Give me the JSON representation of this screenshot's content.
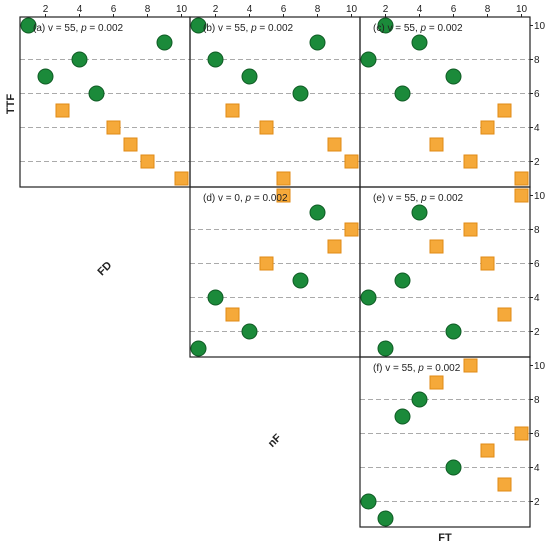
{
  "colors": {
    "circle": "#1b8a3a",
    "circle_edge": "#0f5a24",
    "square": "#f5a93a",
    "square_edge": "#e08a14",
    "grid": "#aaaaaa",
    "frame": "#222222"
  },
  "labels": {
    "row_label": "TTF",
    "diag_label_1": "FD",
    "diag_label_2": "nF",
    "col_label": "FT"
  },
  "chart_data": [
    {
      "type": "scatter",
      "panel": "a",
      "annotation": {
        "prefix": "(a) v = 55, ",
        "p_symbol": "p",
        "suffix": " = 0.002"
      },
      "xlim": [
        0.5,
        10.5
      ],
      "ylim": [
        0.5,
        10.5
      ],
      "x_ticks": [
        "2",
        "4",
        "6",
        "8",
        "10"
      ],
      "y_ticks": [],
      "circles": [
        [
          1,
          10
        ],
        [
          9,
          9
        ],
        [
          4,
          8
        ],
        [
          2,
          7
        ],
        [
          5,
          6
        ]
      ],
      "squares": [
        [
          3,
          5
        ],
        [
          6,
          4
        ],
        [
          7,
          3
        ],
        [
          8,
          2
        ],
        [
          10,
          1
        ]
      ]
    },
    {
      "type": "scatter",
      "panel": "b",
      "annotation": {
        "prefix": "(b) v = 55, ",
        "p_symbol": "p",
        "suffix": " = 0.002"
      },
      "xlim": [
        0.5,
        10.5
      ],
      "ylim": [
        0.5,
        10.5
      ],
      "x_ticks": [
        "2",
        "4",
        "6",
        "8",
        "10"
      ],
      "y_ticks": [],
      "circles": [
        [
          1,
          10
        ],
        [
          8,
          9
        ],
        [
          2,
          8
        ],
        [
          4,
          7
        ],
        [
          7,
          6
        ]
      ],
      "squares": [
        [
          3,
          5
        ],
        [
          5,
          4
        ],
        [
          9,
          3
        ],
        [
          10,
          2
        ],
        [
          6,
          1
        ]
      ]
    },
    {
      "type": "scatter",
      "panel": "c",
      "annotation": {
        "prefix": "(c) v = 55, ",
        "p_symbol": "p",
        "suffix": " = 0.002"
      },
      "xlim": [
        0.5,
        10.5
      ],
      "ylim": [
        0.5,
        10.5
      ],
      "x_ticks": [
        "2",
        "4",
        "6",
        "8",
        "10"
      ],
      "y_ticks": [
        "2",
        "4",
        "6",
        "8",
        "10"
      ],
      "circles": [
        [
          2,
          10
        ],
        [
          4,
          9
        ],
        [
          1,
          8
        ],
        [
          6,
          7
        ],
        [
          3,
          6
        ]
      ],
      "squares": [
        [
          9,
          5
        ],
        [
          8,
          4
        ],
        [
          5,
          3
        ],
        [
          7,
          2
        ],
        [
          10,
          1
        ]
      ]
    },
    {
      "type": "scatter",
      "panel": "d",
      "annotation": {
        "prefix": "(d) v = 0, ",
        "p_symbol": "p",
        "suffix": " = 0.002"
      },
      "xlim": [
        0.5,
        10.5
      ],
      "ylim": [
        0.5,
        10.5
      ],
      "x_ticks": [],
      "y_ticks": [],
      "circles": [
        [
          8,
          9
        ],
        [
          7,
          5
        ],
        [
          2,
          4
        ],
        [
          4,
          2
        ],
        [
          1,
          1
        ]
      ],
      "squares": [
        [
          6,
          10
        ],
        [
          10,
          8
        ],
        [
          9,
          7
        ],
        [
          5,
          6
        ],
        [
          3,
          3
        ]
      ]
    },
    {
      "type": "scatter",
      "panel": "e",
      "annotation": {
        "prefix": "(e) v = 55, ",
        "p_symbol": "p",
        "suffix": " = 0.002"
      },
      "xlim": [
        0.5,
        10.5
      ],
      "ylim": [
        0.5,
        10.5
      ],
      "x_ticks": [],
      "y_ticks": [
        "2",
        "4",
        "6",
        "8",
        "10"
      ],
      "circles": [
        [
          4,
          9
        ],
        [
          3,
          5
        ],
        [
          1,
          4
        ],
        [
          6,
          2
        ],
        [
          2,
          1
        ]
      ],
      "squares": [
        [
          10,
          10
        ],
        [
          7,
          8
        ],
        [
          5,
          7
        ],
        [
          8,
          6
        ],
        [
          9,
          3
        ]
      ]
    },
    {
      "type": "scatter",
      "panel": "f",
      "annotation": {
        "prefix": "(f) v = 55, ",
        "p_symbol": "p",
        "suffix": " = 0.002"
      },
      "xlim": [
        0.5,
        10.5
      ],
      "ylim": [
        0.5,
        10.5
      ],
      "x_ticks": [],
      "y_ticks": [
        "2",
        "4",
        "6",
        "8",
        "10"
      ],
      "circles": [
        [
          4,
          8
        ],
        [
          3,
          7
        ],
        [
          6,
          4
        ],
        [
          1,
          2
        ],
        [
          2,
          1
        ]
      ],
      "squares": [
        [
          7,
          10
        ],
        [
          5,
          9
        ],
        [
          10,
          6
        ],
        [
          8,
          5
        ],
        [
          9,
          3
        ]
      ]
    }
  ]
}
